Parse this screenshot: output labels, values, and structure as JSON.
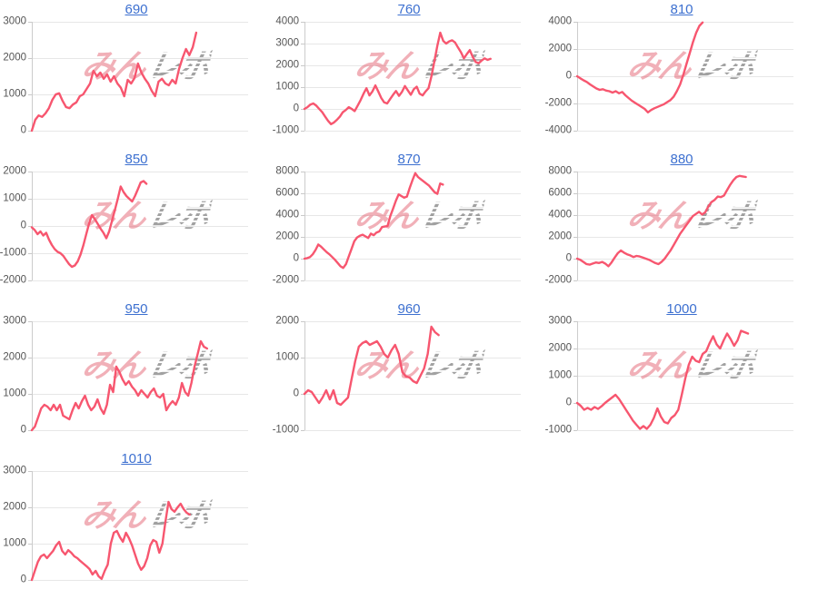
{
  "page": {
    "background": "#ffffff"
  },
  "watermark": {
    "pink": "みん",
    "gray": "レポ"
  },
  "colors": {
    "line": "#f7566f",
    "title_link": "#3d70d0",
    "tick_label": "#555555",
    "gridline": "#e7e7e7",
    "axis_line": "#cccccc",
    "watermark_pink": "rgba(228,98,114,0.5)",
    "watermark_gray": "rgba(138,138,138,0.6)"
  },
  "chart_data": [
    {
      "type": "line",
      "title": "690",
      "ylim": [
        0,
        3000
      ],
      "yticks": [
        0,
        1000,
        2000,
        3000
      ],
      "span": 0.76,
      "legend": "none",
      "grid": true,
      "values": [
        0,
        300,
        420,
        380,
        480,
        620,
        850,
        1000,
        1030,
        820,
        650,
        620,
        720,
        780,
        950,
        1000,
        1150,
        1300,
        1650,
        1500,
        1600,
        1430,
        1550,
        1350,
        1500,
        1300,
        1180,
        950,
        1400,
        1300,
        1450,
        1850,
        1600,
        1430,
        1300,
        1100,
        950,
        1350,
        1430,
        1300,
        1250,
        1400,
        1300,
        1700,
        2000,
        2250,
        2080,
        2300,
        2700
      ]
    },
    {
      "type": "line",
      "title": "760",
      "ylim": [
        -1000,
        4000
      ],
      "yticks": [
        -1000,
        0,
        1000,
        2000,
        3000,
        4000
      ],
      "span": 0.86,
      "legend": "none",
      "grid": true,
      "values": [
        0,
        80,
        200,
        250,
        150,
        0,
        -150,
        -350,
        -550,
        -700,
        -620,
        -500,
        -350,
        -150,
        -50,
        80,
        0,
        -100,
        150,
        400,
        700,
        950,
        620,
        800,
        1080,
        800,
        500,
        300,
        250,
        450,
        650,
        820,
        600,
        780,
        1050,
        850,
        650,
        900,
        1020,
        700,
        620,
        800,
        950,
        1500,
        2200,
        2900,
        3500,
        3120,
        3000,
        3100,
        3150,
        3050,
        2820,
        2600,
        2320,
        2520,
        2700,
        2380,
        2150,
        2100,
        2220,
        2320,
        2250,
        2300
      ]
    },
    {
      "type": "line",
      "title": "810",
      "ylim": [
        -4000,
        4000
      ],
      "yticks": [
        -4000,
        -2000,
        0,
        2000,
        4000
      ],
      "span": 0.58,
      "legend": "none",
      "grid": true,
      "values": [
        0,
        -150,
        -300,
        -420,
        -600,
        -750,
        -900,
        -1000,
        -950,
        -1050,
        -1100,
        -1200,
        -1100,
        -1250,
        -1150,
        -1400,
        -1600,
        -1800,
        -1950,
        -2100,
        -2250,
        -2400,
        -2650,
        -2480,
        -2350,
        -2250,
        -2150,
        -2050,
        -1900,
        -1750,
        -1500,
        -1100,
        -600,
        100,
        900,
        1700,
        2500,
        3200,
        3700,
        3950
      ]
    },
    {
      "type": "line",
      "title": "850",
      "ylim": [
        -2000,
        2000
      ],
      "yticks": [
        -2000,
        -1000,
        0,
        1000,
        2000
      ],
      "span": 0.53,
      "legend": "none",
      "grid": true,
      "values": [
        -50,
        -150,
        -300,
        -200,
        -350,
        -250,
        -500,
        -700,
        -850,
        -950,
        -1000,
        -1100,
        -1250,
        -1400,
        -1500,
        -1450,
        -1300,
        -1050,
        -700,
        -300,
        100,
        400,
        250,
        80,
        -100,
        -250,
        -450,
        -200,
        200,
        600,
        1000,
        1450,
        1250,
        1100,
        1000,
        900,
        1100,
        1350,
        1600,
        1650,
        1550
      ]
    },
    {
      "type": "line",
      "title": "870",
      "ylim": [
        -2000,
        8000
      ],
      "yticks": [
        -2000,
        0,
        2000,
        4000,
        6000,
        8000
      ],
      "span": 0.64,
      "legend": "none",
      "grid": true,
      "values": [
        0,
        50,
        150,
        400,
        800,
        1300,
        1100,
        850,
        600,
        400,
        150,
        -100,
        -400,
        -700,
        -850,
        -500,
        200,
        900,
        1600,
        1950,
        2100,
        2200,
        2050,
        1900,
        2300,
        2150,
        2400,
        2500,
        2900,
        2950,
        3000,
        3900,
        4600,
        5300,
        5900,
        5750,
        5600,
        5700,
        6500,
        7200,
        7850,
        7500,
        7300,
        7100,
        6900,
        6700,
        6400,
        6100,
        5950,
        6900,
        6800
      ]
    },
    {
      "type": "line",
      "title": "880",
      "ylim": [
        -2000,
        8000
      ],
      "yticks": [
        -2000,
        0,
        2000,
        4000,
        6000,
        8000
      ],
      "span": 0.78,
      "legend": "none",
      "grid": true,
      "values": [
        0,
        -100,
        -300,
        -500,
        -550,
        -450,
        -350,
        -400,
        -300,
        -450,
        -700,
        -350,
        100,
        500,
        750,
        550,
        400,
        300,
        150,
        250,
        200,
        100,
        0,
        -100,
        -250,
        -400,
        -500,
        -300,
        0,
        400,
        800,
        1300,
        1800,
        2300,
        2700,
        3100,
        3500,
        3900,
        4100,
        4300,
        4050,
        4250,
        4800,
        5200,
        5400,
        5700,
        5650,
        5800,
        6300,
        6800,
        7200,
        7500,
        7600,
        7550,
        7500
      ]
    },
    {
      "type": "line",
      "title": "950",
      "ylim": [
        0,
        3000
      ],
      "yticks": [
        0,
        1000,
        2000,
        3000
      ],
      "span": 0.81,
      "legend": "none",
      "grid": true,
      "values": [
        0,
        100,
        350,
        600,
        700,
        650,
        550,
        700,
        550,
        700,
        400,
        350,
        300,
        550,
        750,
        600,
        800,
        950,
        700,
        550,
        650,
        850,
        600,
        450,
        700,
        1250,
        1050,
        1750,
        1600,
        1400,
        1250,
        1350,
        1200,
        1100,
        950,
        1100,
        1000,
        900,
        1050,
        1150,
        950,
        900,
        1000,
        550,
        700,
        800,
        700,
        900,
        1300,
        1050,
        950,
        1300,
        1750,
        2100,
        2450,
        2300,
        2250
      ]
    },
    {
      "type": "line",
      "title": "960",
      "ylim": [
        -1000,
        2000
      ],
      "yticks": [
        -1000,
        0,
        1000,
        2000
      ],
      "span": 0.62,
      "legend": "none",
      "grid": true,
      "values": [
        0,
        100,
        50,
        -100,
        -250,
        -100,
        100,
        -150,
        100,
        -250,
        -300,
        -200,
        -100,
        400,
        900,
        1300,
        1400,
        1450,
        1350,
        1400,
        1450,
        1300,
        1100,
        1000,
        1200,
        1350,
        1100,
        600,
        480,
        450,
        350,
        300,
        500,
        700,
        1100,
        1850,
        1700,
        1620
      ]
    },
    {
      "type": "line",
      "title": "1000",
      "ylim": [
        -1000,
        3000
      ],
      "yticks": [
        -1000,
        0,
        1000,
        2000,
        3000
      ],
      "span": 0.79,
      "legend": "none",
      "grid": true,
      "values": [
        0,
        -100,
        -250,
        -180,
        -250,
        -150,
        -220,
        -120,
        0,
        100,
        200,
        300,
        150,
        -50,
        -250,
        -450,
        -650,
        -800,
        -950,
        -850,
        -950,
        -800,
        -550,
        -200,
        -500,
        -700,
        -750,
        -550,
        -450,
        -250,
        300,
        900,
        1400,
        1700,
        1550,
        1500,
        1800,
        1900,
        2200,
        2450,
        2150,
        2000,
        2300,
        2550,
        2350,
        2100,
        2300,
        2650,
        2600,
        2550
      ]
    },
    {
      "type": "line",
      "title": "1010",
      "ylim": [
        0,
        3000
      ],
      "yticks": [
        0,
        1000,
        2000,
        3000
      ],
      "span": 0.73,
      "legend": "none",
      "grid": true,
      "values": [
        0,
        250,
        500,
        650,
        700,
        600,
        700,
        800,
        950,
        1050,
        800,
        700,
        820,
        750,
        650,
        600,
        520,
        450,
        380,
        300,
        150,
        250,
        100,
        30,
        250,
        420,
        1000,
        1300,
        1350,
        1180,
        1050,
        1300,
        1150,
        950,
        700,
        450,
        280,
        380,
        600,
        950,
        1100,
        1050,
        750,
        1000,
        1600,
        2150,
        1950,
        1880,
        2000,
        2100,
        1950,
        1850,
        1800
      ]
    }
  ]
}
